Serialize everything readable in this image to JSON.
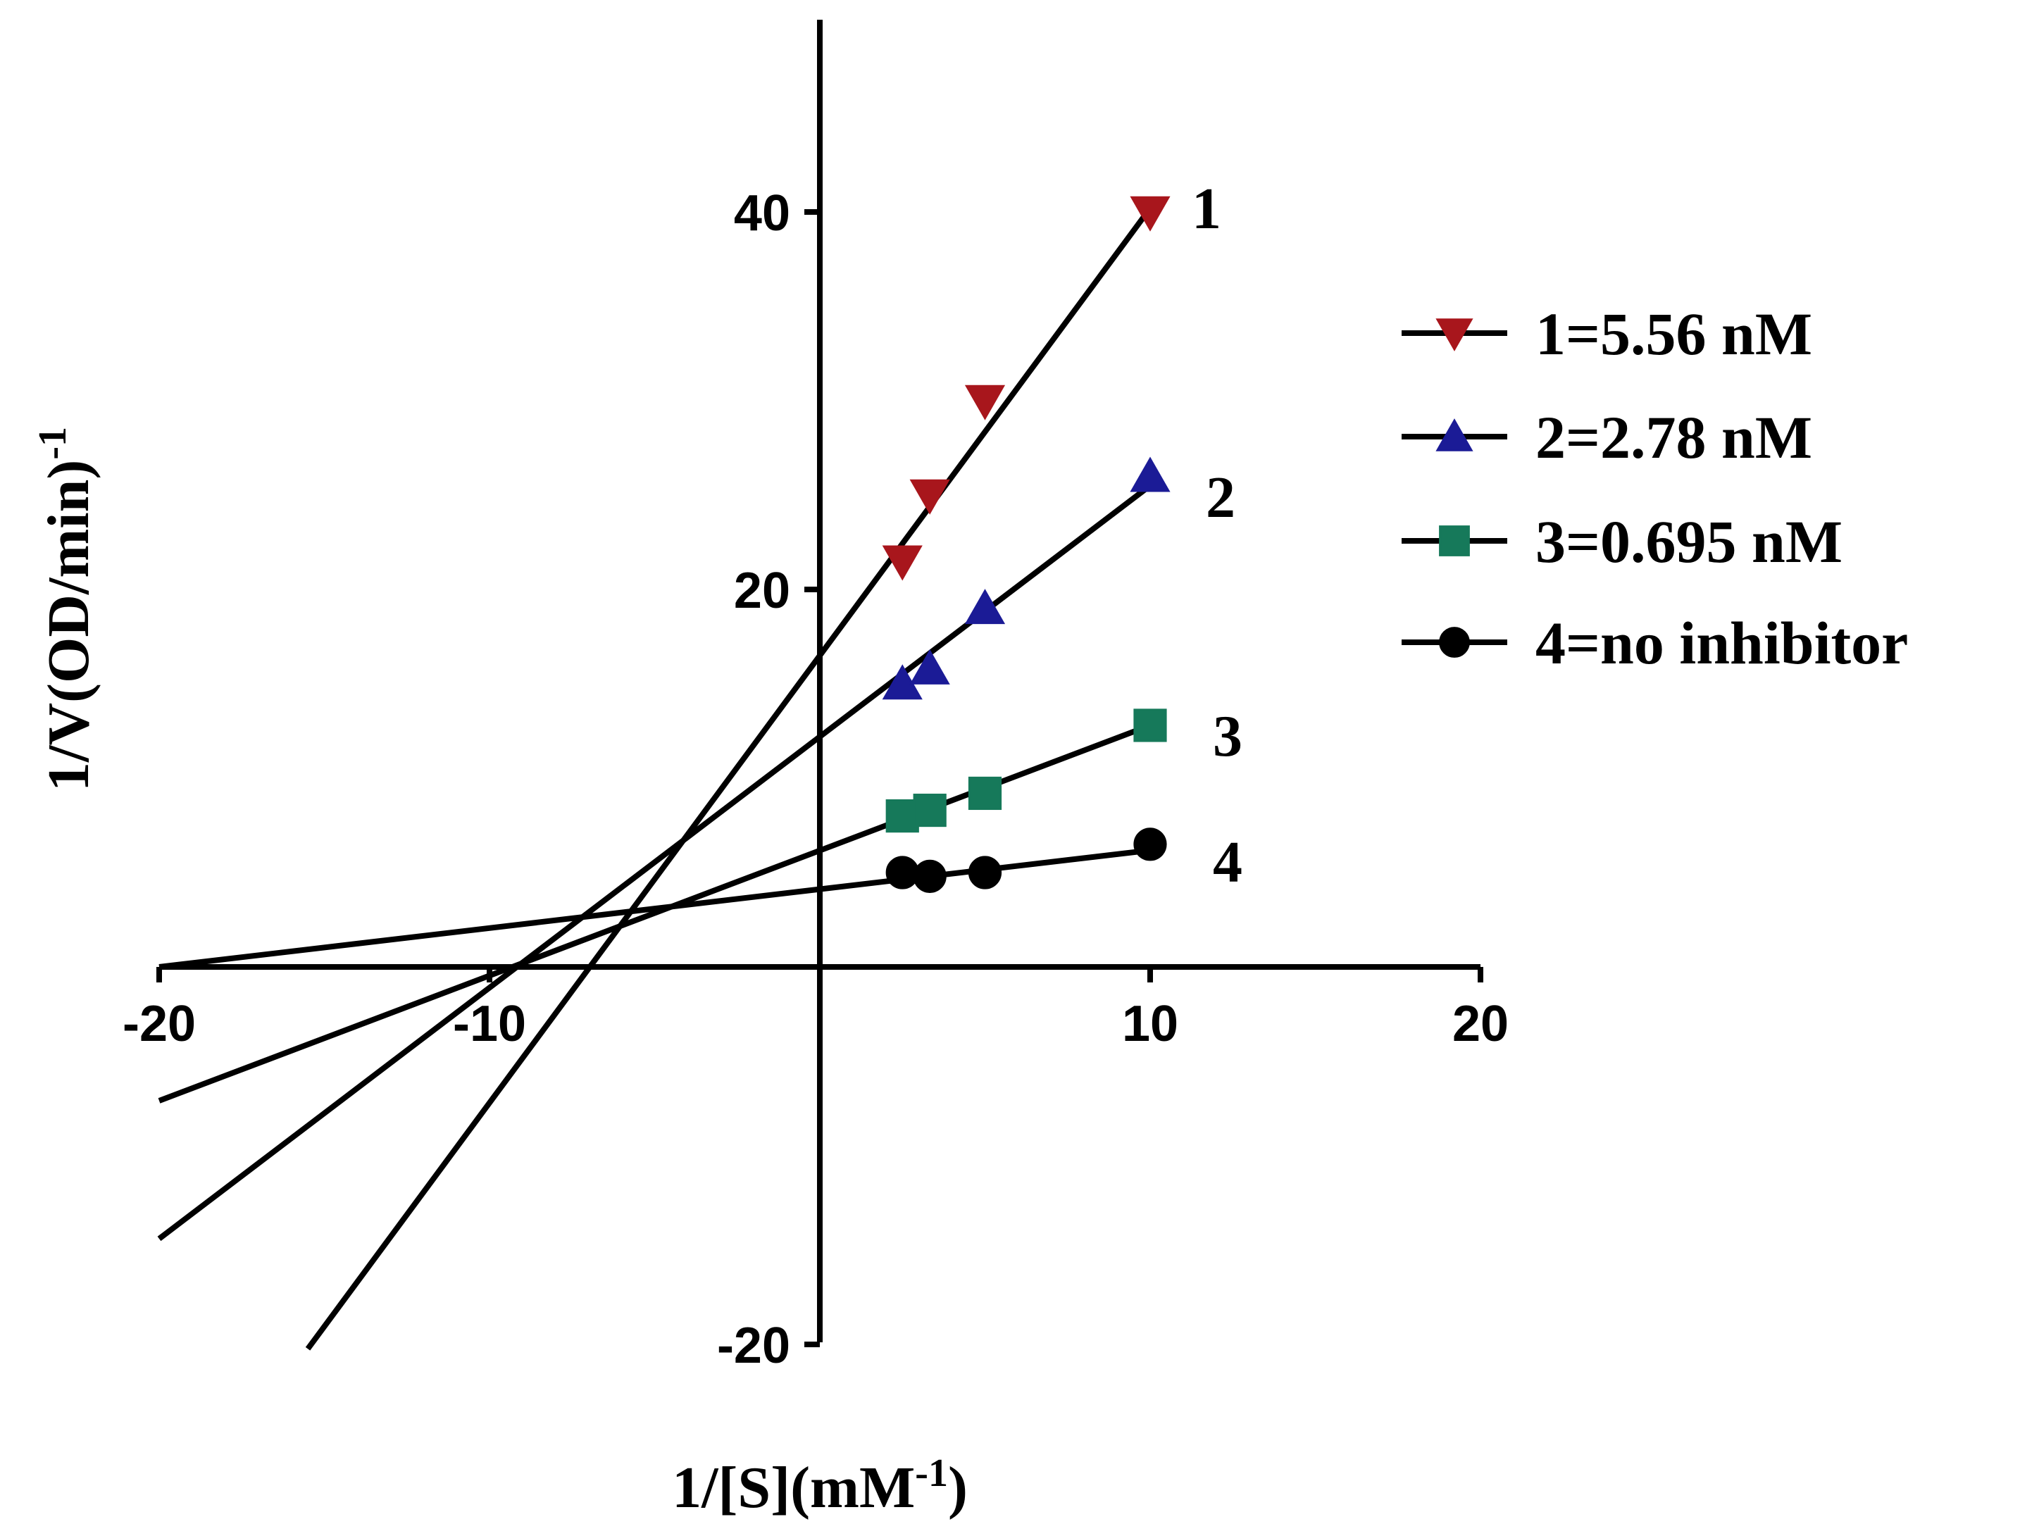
{
  "chart_data": {
    "type": "line",
    "title": "",
    "xlabel": "1/[S](mM",
    "xlabel_sup": "-1",
    "xlabel_tail": ")",
    "ylabel": "1/V(OD/min)",
    "ylabel_sup": "-1",
    "xlim": [
      -20,
      20
    ],
    "ylim": [
      -20,
      50
    ],
    "xticks": [
      -20,
      -10,
      10,
      20
    ],
    "yticks": [
      -20,
      20,
      40
    ],
    "xtick_labels": [
      "-20",
      "-10",
      "10",
      "20"
    ],
    "ytick_labels": [
      "-20",
      "20",
      "40"
    ],
    "legend_position": "right",
    "series": [
      {
        "name": "1=5.56 nM",
        "label": "1",
        "marker": "triangle-down",
        "color": "#a8161c",
        "x": [
          2.5,
          3.33,
          5,
          10
        ],
        "y": [
          21.5,
          25,
          30,
          40
        ],
        "fit": {
          "x_start": -15.5,
          "x_end": 10,
          "slope": 2.37,
          "intercept": 16.5
        }
      },
      {
        "name": "2=2.78 nM",
        "label": "2",
        "marker": "triangle-up",
        "color": "#1b1b96",
        "x": [
          2.5,
          3.33,
          5,
          10
        ],
        "y": [
          15,
          15.8,
          19,
          26
        ],
        "fit": {
          "x_start": -20,
          "x_end": 10,
          "slope": 1.33,
          "intercept": 12.2
        }
      },
      {
        "name": "3=0.695 nM",
        "label": "3",
        "marker": "square",
        "color": "#16795a",
        "x": [
          2.5,
          3.33,
          5,
          10
        ],
        "y": [
          8,
          8.3,
          9.2,
          12.8
        ],
        "fit": {
          "x_start": -20,
          "x_end": 10,
          "slope": 0.663,
          "intercept": 6.17
        }
      },
      {
        "name": "4=no inhibitor",
        "label": "4",
        "marker": "circle",
        "color": "#000000",
        "x": [
          2.5,
          3.33,
          5,
          10
        ],
        "y": [
          5,
          4.8,
          5,
          6.5
        ],
        "fit": {
          "x_start": -20,
          "x_end": 10,
          "slope": 0.206,
          "intercept": 4.12
        }
      }
    ]
  }
}
